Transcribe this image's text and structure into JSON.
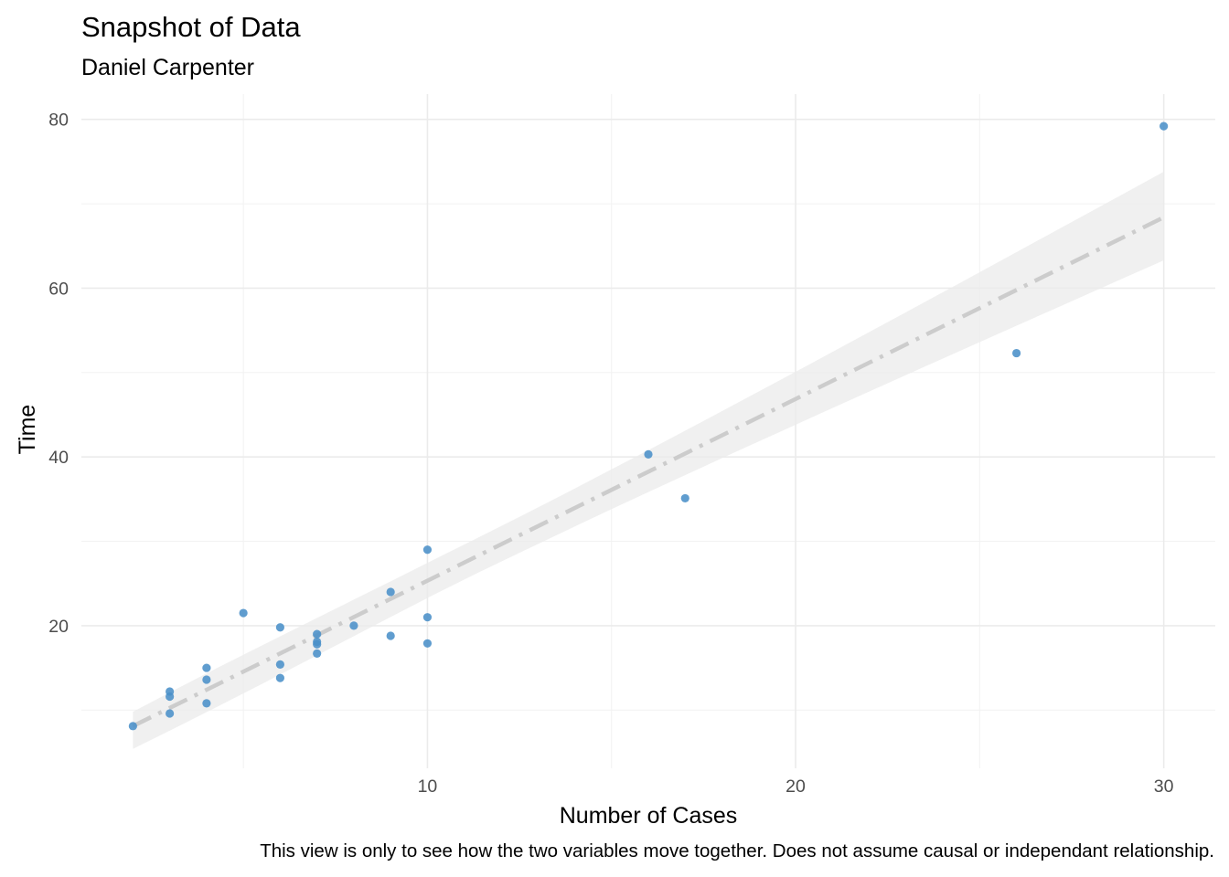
{
  "title": "Snapshot of Data",
  "subtitle": "Daniel Carpenter",
  "caption": "This view is only to see how the two variables move together. Does not assume causal or independant relationship.",
  "chart_data": {
    "type": "scatter",
    "xlabel": "Number of Cases",
    "ylabel": "Time",
    "xlim": [
      0.6,
      31.4
    ],
    "ylim": [
      3.1,
      83.0
    ],
    "x_ticks": [
      10,
      20,
      30
    ],
    "y_ticks": [
      20,
      40,
      60,
      80
    ],
    "grid": true,
    "legend": "none",
    "point_color": "#4a90c8",
    "points": [
      {
        "x": 2,
        "y": 8.1
      },
      {
        "x": 3,
        "y": 9.6
      },
      {
        "x": 3,
        "y": 11.6
      },
      {
        "x": 3,
        "y": 12.2
      },
      {
        "x": 4,
        "y": 10.8
      },
      {
        "x": 4,
        "y": 13.6
      },
      {
        "x": 4,
        "y": 15.0
      },
      {
        "x": 5,
        "y": 21.5
      },
      {
        "x": 6,
        "y": 13.8
      },
      {
        "x": 6,
        "y": 15.4
      },
      {
        "x": 6,
        "y": 19.8
      },
      {
        "x": 7,
        "y": 16.7
      },
      {
        "x": 7,
        "y": 17.8
      },
      {
        "x": 7,
        "y": 18.1
      },
      {
        "x": 7,
        "y": 19.0
      },
      {
        "x": 8,
        "y": 20.0
      },
      {
        "x": 9,
        "y": 18.8
      },
      {
        "x": 9,
        "y": 24.0
      },
      {
        "x": 10,
        "y": 17.9
      },
      {
        "x": 10,
        "y": 21.0
      },
      {
        "x": 10,
        "y": 29.0
      },
      {
        "x": 16,
        "y": 40.3
      },
      {
        "x": 17,
        "y": 35.1
      },
      {
        "x": 26,
        "y": 52.3
      },
      {
        "x": 30,
        "y": 79.2
      }
    ],
    "trend": {
      "style": "dot-dash",
      "color": "#cccccc",
      "x": [
        2,
        30
      ],
      "y": [
        8.1,
        68.4
      ],
      "band_lower": [
        5.4,
        63.3
      ],
      "band_upper": [
        9.8,
        73.8
      ],
      "band_color": "#ebebeb"
    }
  }
}
